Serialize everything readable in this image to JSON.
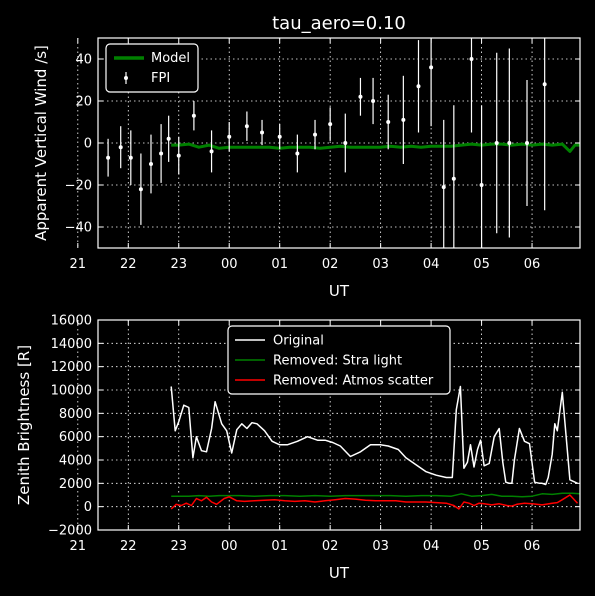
{
  "chart_data": [
    {
      "type": "line",
      "title": "tau_aero=0.10",
      "xlabel": "UT",
      "ylabel": "Apparent Vertical Wind /s]",
      "xlim": [
        21.4,
        30.95
      ],
      "ylim": [
        -50,
        50
      ],
      "xticks": [
        21,
        22,
        23,
        24,
        25,
        26,
        27,
        28,
        29,
        30
      ],
      "xtick_labels": [
        "21",
        "22",
        "23",
        "00",
        "01",
        "02",
        "03",
        "04",
        "05",
        "06"
      ],
      "yticks": [
        -40,
        -20,
        0,
        20,
        40
      ],
      "grid": true,
      "legend": "top-left",
      "series": [
        {
          "name": "Model",
          "color": "#008000",
          "style": "line",
          "x": [
            22.85,
            23.0,
            23.2,
            23.4,
            23.6,
            23.8,
            24.0,
            24.2,
            24.4,
            24.6,
            24.8,
            25.0,
            25.2,
            25.4,
            25.6,
            25.8,
            26.0,
            26.2,
            26.4,
            26.6,
            26.8,
            27.0,
            27.2,
            27.4,
            27.6,
            27.8,
            28.0,
            28.2,
            28.4,
            28.6,
            28.8,
            29.0,
            29.2,
            29.4,
            29.6,
            29.8,
            30.0,
            30.2,
            30.4,
            30.6,
            30.75,
            30.85,
            30.95
          ],
          "y": [
            -1,
            -1,
            -0.5,
            -2,
            -1,
            -2.5,
            -2,
            -2,
            -2,
            -2,
            -2,
            -2.5,
            -2,
            -2,
            -2,
            -2.5,
            -2,
            -1.5,
            -2,
            -2,
            -2,
            -2,
            -1.5,
            -2,
            -1.5,
            -2,
            -1.5,
            -1.5,
            -1.5,
            -1,
            -0.5,
            -1,
            -0.5,
            -0.5,
            -1,
            -0.5,
            -1,
            -0.5,
            -1,
            -0.5,
            -4,
            -1,
            -1
          ]
        },
        {
          "name": "FPI",
          "color": "#ffffff",
          "style": "errorbar",
          "x": [
            21.6,
            21.85,
            22.05,
            22.25,
            22.45,
            22.65,
            22.8,
            23.0,
            23.3,
            23.65,
            24.0,
            24.35,
            24.65,
            25.0,
            25.35,
            25.7,
            26.0,
            26.3,
            26.6,
            26.85,
            27.15,
            27.45,
            27.75,
            28.0,
            28.25,
            28.45,
            28.8,
            29.0,
            29.3,
            29.55,
            29.9,
            30.25
          ],
          "y": [
            -7,
            -2,
            -7,
            -22,
            -10,
            -5,
            2,
            -6,
            13,
            -4,
            3,
            8,
            5,
            3,
            -5,
            4,
            9,
            0,
            22,
            20,
            10,
            11,
            27,
            36,
            -21,
            -17,
            40,
            -20,
            0,
            0,
            0,
            28
          ],
          "err": [
            9,
            10,
            13,
            17,
            14,
            14,
            11,
            9,
            7,
            10,
            7,
            7,
            6,
            6,
            9,
            7,
            8,
            14,
            9,
            11,
            13,
            21,
            22,
            28,
            32,
            35,
            35,
            38,
            43,
            45,
            30,
            60
          ]
        }
      ]
    },
    {
      "type": "line",
      "title": "",
      "xlabel": "UT",
      "ylabel": "Zenith Brightness [R]",
      "xlim": [
        21.4,
        30.95
      ],
      "ylim": [
        -2000,
        16000
      ],
      "xticks": [
        21,
        22,
        23,
        24,
        25,
        26,
        27,
        28,
        29,
        30
      ],
      "xtick_labels": [
        "21",
        "22",
        "23",
        "00",
        "01",
        "02",
        "03",
        "04",
        "05",
        "06"
      ],
      "yticks": [
        -2000,
        0,
        2000,
        4000,
        6000,
        8000,
        10000,
        12000,
        14000,
        16000
      ],
      "grid": true,
      "legend": "top-center",
      "series": [
        {
          "name": "Original",
          "color": "#ffffff",
          "x": [
            22.85,
            22.93,
            23.0,
            23.1,
            23.2,
            23.28,
            23.35,
            23.45,
            23.55,
            23.65,
            23.72,
            23.85,
            23.95,
            24.05,
            24.15,
            24.25,
            24.35,
            24.45,
            24.55,
            24.7,
            24.85,
            25.0,
            25.15,
            25.35,
            25.55,
            25.75,
            25.9,
            26.05,
            26.2,
            26.4,
            26.6,
            26.8,
            27.0,
            27.15,
            27.35,
            27.5,
            27.7,
            27.9,
            28.1,
            28.3,
            28.42,
            28.5,
            28.58,
            28.65,
            28.72,
            28.78,
            28.85,
            28.92,
            28.98,
            29.05,
            29.15,
            29.25,
            29.35,
            29.42,
            29.48,
            29.55,
            29.6,
            29.65,
            29.75,
            29.85,
            29.95,
            30.05,
            30.15,
            30.2,
            30.27,
            30.32,
            30.4,
            30.45,
            30.5,
            30.6,
            30.75,
            30.9
          ],
          "y": [
            10300,
            6500,
            7300,
            8700,
            8500,
            4200,
            6000,
            4800,
            4700,
            6700,
            9000,
            7100,
            6500,
            4600,
            6600,
            7100,
            6700,
            7200,
            7100,
            6500,
            5600,
            5300,
            5300,
            5600,
            6000,
            5700,
            5700,
            5500,
            5200,
            4300,
            4700,
            5300,
            5300,
            5200,
            4900,
            4200,
            3600,
            3000,
            2700,
            2500,
            2500,
            8300,
            10300,
            3300,
            3800,
            5300,
            3400,
            4900,
            5700,
            3500,
            3700,
            6000,
            6700,
            3800,
            2100,
            2000,
            2000,
            4000,
            6700,
            5600,
            5400,
            2100,
            2000,
            2000,
            1900,
            2500,
            4500,
            7100,
            6500,
            9800,
            2300,
            2000
          ]
        },
        {
          "name": "Removed: Stra light",
          "color": "#008000",
          "x": [
            22.85,
            23.0,
            23.2,
            23.4,
            23.6,
            23.8,
            24.0,
            24.2,
            24.5,
            24.8,
            25.1,
            25.4,
            25.7,
            26.0,
            26.3,
            26.6,
            26.9,
            27.2,
            27.5,
            27.8,
            28.1,
            28.4,
            28.6,
            28.8,
            29.0,
            29.2,
            29.4,
            29.6,
            29.8,
            30.0,
            30.2,
            30.4,
            30.6,
            30.8,
            30.95
          ],
          "y": [
            900,
            900,
            900,
            950,
            900,
            950,
            950,
            950,
            900,
            950,
            950,
            900,
            950,
            900,
            950,
            950,
            950,
            950,
            900,
            950,
            950,
            900,
            1100,
            900,
            950,
            1050,
            900,
            900,
            850,
            900,
            1100,
            1050,
            1150,
            1150,
            1100
          ]
        },
        {
          "name": "Removed: Atmos scatter",
          "color": "#ff0000",
          "x": [
            22.85,
            22.95,
            23.05,
            23.15,
            23.25,
            23.35,
            23.45,
            23.55,
            23.65,
            23.75,
            23.9,
            24.0,
            24.15,
            24.3,
            24.5,
            24.7,
            24.9,
            25.1,
            25.3,
            25.5,
            25.7,
            25.9,
            26.1,
            26.3,
            26.5,
            26.7,
            26.9,
            27.1,
            27.3,
            27.5,
            27.7,
            27.9,
            28.1,
            28.3,
            28.45,
            28.55,
            28.65,
            28.75,
            28.85,
            28.95,
            29.05,
            29.2,
            29.35,
            29.5,
            29.6,
            29.7,
            29.85,
            30.0,
            30.2,
            30.4,
            30.5,
            30.6,
            30.75,
            30.9
          ],
          "y": [
            -200,
            200,
            100,
            300,
            100,
            700,
            500,
            800,
            400,
            200,
            700,
            850,
            500,
            450,
            500,
            550,
            600,
            500,
            450,
            500,
            400,
            500,
            600,
            700,
            650,
            550,
            500,
            500,
            500,
            400,
            400,
            400,
            350,
            300,
            100,
            -200,
            400,
            300,
            100,
            300,
            250,
            150,
            250,
            100,
            50,
            200,
            300,
            250,
            150,
            300,
            350,
            600,
            1000,
            300
          ]
        }
      ]
    }
  ]
}
